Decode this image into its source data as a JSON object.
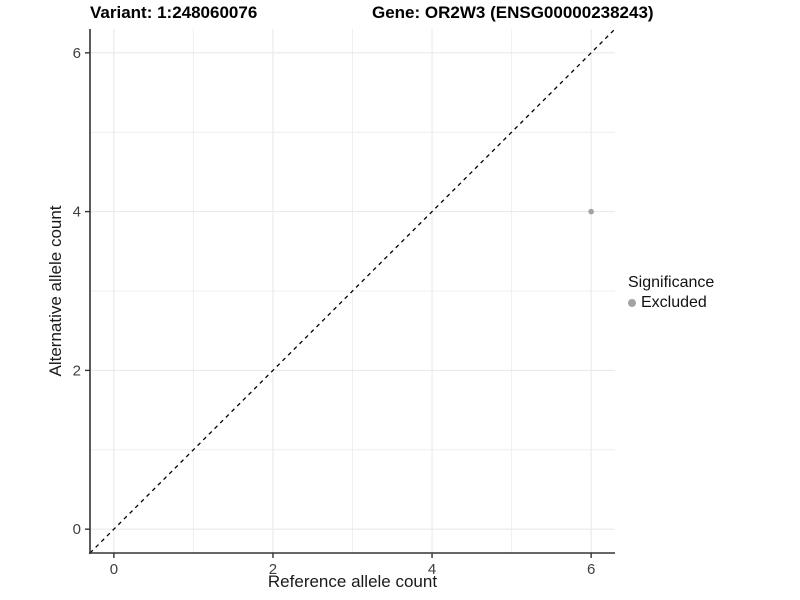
{
  "titles": {
    "variant": "Variant: 1:248060076",
    "gene": "Gene: OR2W3 (ENSG00000238243)"
  },
  "legend": {
    "title": "Significance",
    "entries": [
      {
        "label": "Excluded",
        "color": "#A3A3A3"
      }
    ]
  },
  "chart_data": {
    "type": "scatter",
    "title": "Variant: 1:248060076    Gene: OR2W3 (ENSG00000238243)",
    "xlabel": "Reference allele count",
    "ylabel": "Alternative allele count",
    "xlim": [
      -0.3,
      6.3
    ],
    "ylim": [
      -0.3,
      6.3
    ],
    "x_ticks": [
      0,
      2,
      4,
      6
    ],
    "y_ticks": [
      0,
      2,
      4,
      6
    ],
    "minor_ticks": [
      1,
      3,
      5
    ],
    "grid": "on",
    "legend_position": "right",
    "series": [
      {
        "name": "Excluded",
        "color": "#A3A3A3",
        "points": [
          {
            "x": 6,
            "y": 4
          }
        ]
      }
    ],
    "reference_line": {
      "kind": "identity y=x",
      "from": [
        -0.3,
        -0.3
      ],
      "to": [
        6.3,
        6.3
      ],
      "style": "dashed",
      "color": "#000000"
    }
  },
  "colors": {
    "axis_line": "#333333",
    "tick_label": "#404040",
    "axis_title": "#1a1a1a",
    "grid_major": "#E8E8E8",
    "grid_minor": "#EFEFEF",
    "point": "#A3A3A3",
    "dashed_line": "#000000",
    "background": "#FFFFFF"
  }
}
